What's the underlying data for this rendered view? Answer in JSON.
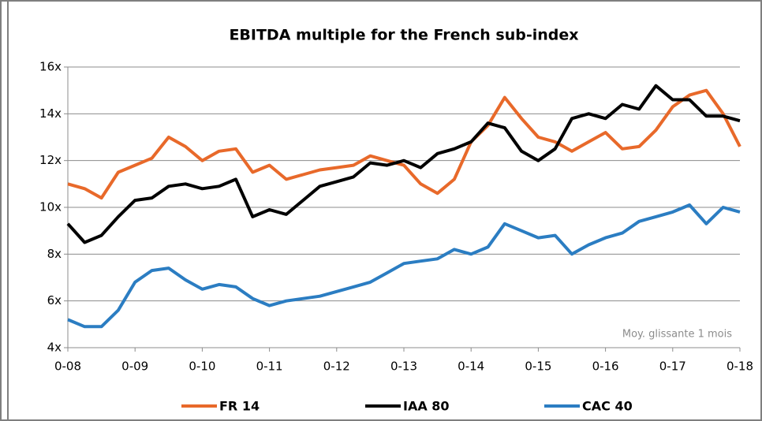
{
  "chart_data": {
    "type": "line",
    "title": "EBITDA multiple for the French sub-index",
    "annotation": "Moy. glissante 1 mois",
    "x": [
      2008,
      2008.25,
      2008.5,
      2008.75,
      2009,
      2009.25,
      2009.5,
      2009.75,
      2010,
      2010.25,
      2010.5,
      2010.75,
      2011,
      2011.25,
      2011.5,
      2011.75,
      2012,
      2012.25,
      2012.5,
      2012.75,
      2013,
      2013.25,
      2013.5,
      2013.75,
      2014,
      2014.25,
      2014.5,
      2014.75,
      2015,
      2015.25,
      2015.5,
      2015.75,
      2016,
      2016.25,
      2016.5,
      2016.75,
      2017,
      2017.25,
      2017.5,
      2017.75,
      2018
    ],
    "series": [
      {
        "name": "FR 14",
        "color": "#e8692a",
        "values": [
          11.0,
          10.8,
          10.4,
          11.5,
          11.8,
          12.1,
          13.0,
          12.6,
          12.0,
          12.4,
          12.5,
          11.5,
          11.8,
          11.2,
          11.4,
          11.6,
          11.7,
          11.8,
          12.2,
          12.0,
          11.8,
          11.0,
          10.6,
          11.2,
          12.8,
          13.5,
          14.7,
          13.8,
          13.0,
          12.8,
          12.4,
          12.8,
          13.2,
          12.5,
          12.6,
          13.3,
          14.3,
          14.8,
          15.0,
          14.0,
          12.6
        ]
      },
      {
        "name": "IAA 80",
        "color": "#000000",
        "values": [
          9.3,
          8.5,
          8.8,
          9.6,
          10.3,
          10.4,
          10.9,
          11.0,
          10.8,
          10.9,
          11.2,
          9.6,
          9.9,
          9.7,
          10.3,
          10.9,
          11.1,
          11.3,
          11.9,
          11.8,
          12.0,
          11.7,
          12.3,
          12.5,
          12.8,
          13.6,
          13.4,
          12.4,
          12.0,
          12.5,
          13.8,
          14.0,
          13.8,
          14.4,
          14.2,
          15.2,
          14.6,
          14.6,
          13.9,
          13.9,
          13.7
        ]
      },
      {
        "name": "CAC 40",
        "color": "#2b7dc2",
        "values": [
          5.2,
          4.9,
          4.9,
          5.6,
          6.8,
          7.3,
          7.4,
          6.9,
          6.5,
          6.7,
          6.6,
          6.1,
          5.8,
          6.0,
          6.1,
          6.2,
          6.4,
          6.6,
          6.8,
          7.2,
          7.6,
          7.7,
          7.8,
          8.2,
          8.0,
          8.3,
          9.3,
          9.0,
          8.7,
          8.8,
          8.0,
          8.4,
          8.7,
          8.9,
          9.4,
          9.6,
          9.8,
          10.1,
          9.3,
          10.0,
          9.8
        ]
      }
    ],
    "xlim": [
      2008,
      2018
    ],
    "xticks": [
      {
        "value": 2008,
        "label": "0-08"
      },
      {
        "value": 2009,
        "label": "0-09"
      },
      {
        "value": 2010,
        "label": "0-10"
      },
      {
        "value": 2011,
        "label": "0-11"
      },
      {
        "value": 2012,
        "label": "0-12"
      },
      {
        "value": 2013,
        "label": "0-13"
      },
      {
        "value": 2014,
        "label": "0-14"
      },
      {
        "value": 2015,
        "label": "0-15"
      },
      {
        "value": 2016,
        "label": "0-16"
      },
      {
        "value": 2017,
        "label": "0-17"
      },
      {
        "value": 2018,
        "label": "0-18"
      }
    ],
    "ylim": [
      4,
      16
    ],
    "yticks": [
      {
        "value": 4,
        "label": "4x"
      },
      {
        "value": 6,
        "label": "6x"
      },
      {
        "value": 8,
        "label": "8x"
      },
      {
        "value": 10,
        "label": "10x"
      },
      {
        "value": 12,
        "label": "12x"
      },
      {
        "value": 14,
        "label": "14x"
      },
      {
        "value": 16,
        "label": "16x"
      }
    ],
    "grid": true,
    "legend": "bottom"
  }
}
